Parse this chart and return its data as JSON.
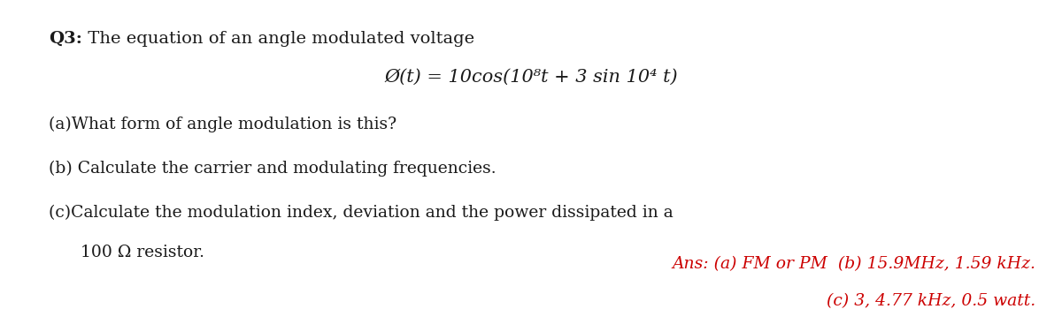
{
  "bg_color": "#ffffff",
  "title_bold": "Q3:",
  "title_rest": " The equation of an angle modulated voltage",
  "equation": "Ø(t) = 10cos(10⁸t + 3 sin 10⁴ t)",
  "line_a": "(a)What form of angle modulation is this?",
  "line_b": "(b) Calculate the carrier and modulating frequencies.",
  "line_c1": "(c)Calculate the modulation index, deviation and the power dissipated in a",
  "line_c2": "    100 Ω resistor.",
  "ans1": "Ans: (a) FM or PM  (b) 15.9MHz, 1.59 kHz.",
  "ans2": "(c) 3, 4.77 kHz, 0.5 watt.",
  "black_color": "#1a1a1a",
  "red_color": "#cc0000",
  "title_fontsize": 14,
  "eq_fontsize": 15,
  "body_fontsize": 13.5,
  "ans_fontsize": 13.5
}
